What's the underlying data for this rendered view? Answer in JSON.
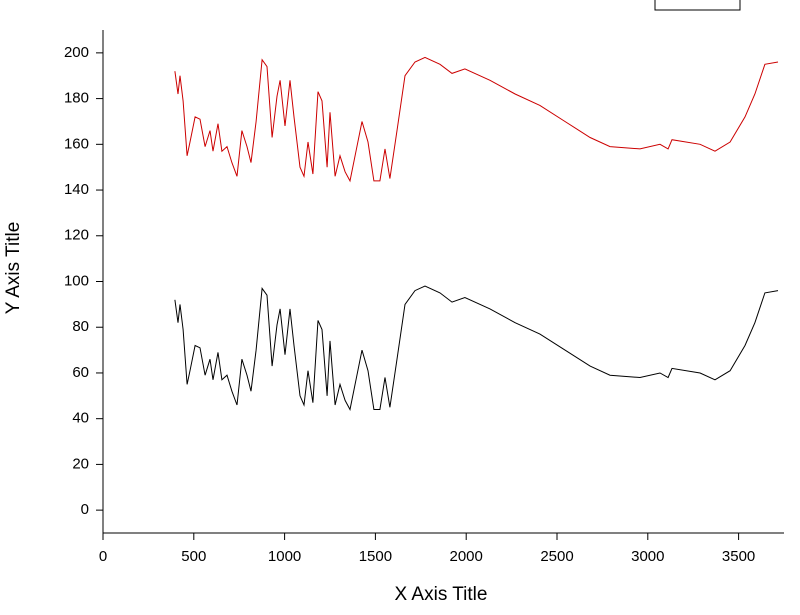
{
  "chart_data": {
    "type": "line",
    "x_label": "X Axis Title",
    "y_label": "Y Axis Title",
    "xlim": [
      0,
      3750
    ],
    "ylim": [
      -10,
      210
    ],
    "xticks": [
      0,
      500,
      1000,
      1500,
      2000,
      2500,
      3000,
      3500
    ],
    "yticks": [
      0,
      20,
      40,
      60,
      80,
      100,
      120,
      140,
      160,
      180,
      200
    ],
    "grid": false,
    "x": [
      396,
      413,
      424,
      441,
      463,
      479,
      507,
      534,
      562,
      589,
      606,
      633,
      655,
      683,
      710,
      738,
      765,
      793,
      815,
      843,
      876,
      903,
      931,
      958,
      975,
      1002,
      1030,
      1052,
      1085,
      1107,
      1129,
      1156,
      1184,
      1206,
      1234,
      1250,
      1278,
      1305,
      1333,
      1360,
      1393,
      1426,
      1459,
      1492,
      1525,
      1553,
      1580,
      1619,
      1663,
      1718,
      1773,
      1856,
      1922,
      1993,
      2131,
      2269,
      2406,
      2544,
      2682,
      2792,
      2957,
      3067,
      3112,
      3133,
      3288,
      3370,
      3453,
      3535,
      3590,
      3645,
      3717
    ],
    "series": [
      {
        "color": "#000000",
        "values": [
          92,
          82,
          90,
          79,
          55,
          61,
          72,
          71,
          59,
          66,
          57,
          69,
          57,
          59,
          52,
          46,
          66,
          59,
          52,
          70,
          97,
          94,
          63,
          81,
          88,
          68,
          88,
          72,
          50,
          46,
          61,
          47,
          83,
          79,
          50,
          74,
          46,
          55,
          48,
          44,
          57,
          70,
          61,
          44,
          44,
          58,
          45,
          66,
          90,
          96,
          98,
          95,
          91,
          93,
          88,
          82,
          77,
          70,
          63,
          59,
          58,
          60,
          58,
          62,
          60,
          57,
          61,
          72,
          82,
          95,
          96
        ]
      },
      {
        "color": "#cc0000",
        "values": [
          192,
          182,
          190,
          179,
          155,
          161,
          172,
          171,
          159,
          166,
          157,
          169,
          157,
          159,
          152,
          146,
          166,
          159,
          152,
          170,
          197,
          194,
          163,
          181,
          188,
          168,
          188,
          172,
          150,
          146,
          161,
          147,
          183,
          179,
          150,
          174,
          146,
          155,
          148,
          144,
          157,
          170,
          161,
          144,
          144,
          158,
          145,
          166,
          190,
          196,
          198,
          195,
          191,
          193,
          188,
          182,
          177,
          170,
          163,
          159,
          158,
          160,
          158,
          162,
          160,
          157,
          161,
          172,
          182,
          195,
          196
        ]
      }
    ]
  }
}
